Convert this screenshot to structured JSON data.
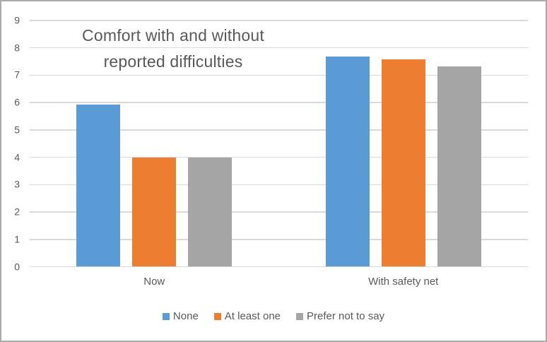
{
  "chart_data": {
    "type": "bar",
    "title": "Comfort with and without reported difficulties",
    "title_lines": [
      "Comfort with and without",
      "reported difficulties"
    ],
    "categories": [
      "Now",
      "With safety net"
    ],
    "series": [
      {
        "name": "None",
        "color": "#5B9BD5",
        "values": [
          5.92,
          7.68
        ]
      },
      {
        "name": "At least one",
        "color": "#ED7D31",
        "values": [
          4.0,
          7.57
        ]
      },
      {
        "name": "Prefer not to say",
        "color": "#A5A5A5",
        "values": [
          4.0,
          7.33
        ]
      }
    ],
    "xlabel": "",
    "ylabel": "",
    "ylim": [
      0,
      9
    ],
    "yticks": [
      0,
      1,
      2,
      3,
      4,
      5,
      6,
      7,
      8,
      9
    ],
    "grid": true,
    "legend_position": "bottom",
    "colors": {
      "gridline": "#D9D9D9",
      "text": "#595959",
      "border": "#ABABAB",
      "background": "#FFFFFF"
    }
  }
}
